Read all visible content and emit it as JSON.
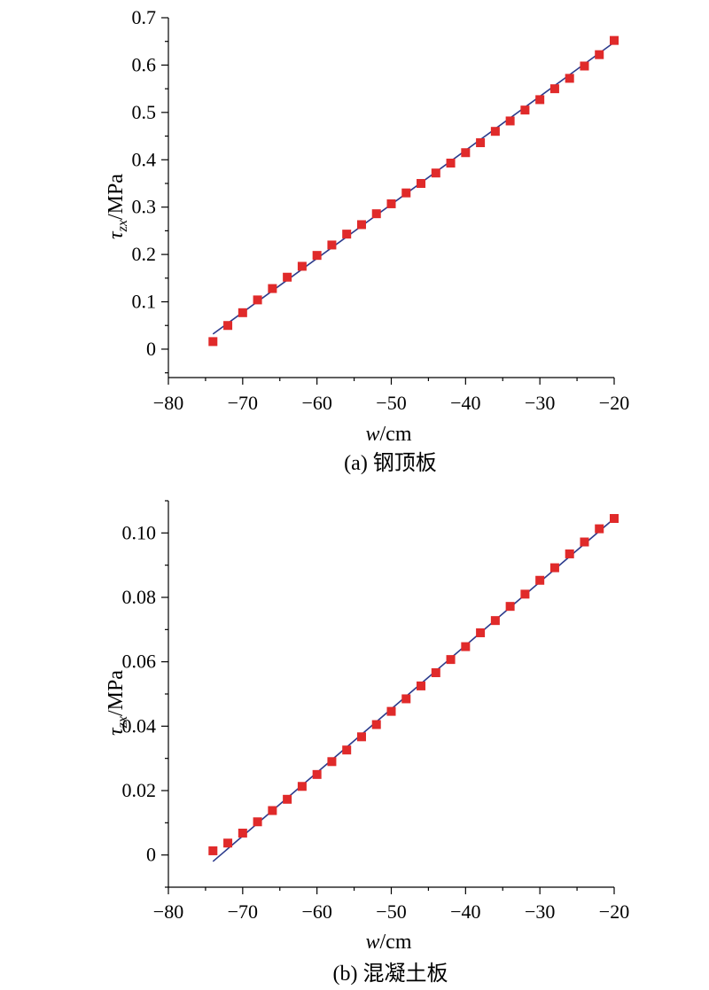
{
  "colors": {
    "points": "#e02a2a",
    "fit_line": "#2b3a8c",
    "axes": "#000000"
  },
  "chart_data": [
    {
      "type": "scatter",
      "caption": "(a) 钢顶板",
      "xlabel": {
        "var": "w",
        "unit": "/cm"
      },
      "ylabel": {
        "var": "τ",
        "sub": "zx",
        "unit": "/MPa"
      },
      "xlim": [
        -80,
        -20
      ],
      "ylim": [
        -0.06,
        0.7
      ],
      "xticks": [
        -80,
        -70,
        -60,
        -50,
        -40,
        -30,
        -20
      ],
      "xtick_labels": [
        "−80",
        "−70",
        "−60",
        "−50",
        "−40",
        "−30",
        "−20"
      ],
      "yticks": [
        0,
        0.1,
        0.2,
        0.3,
        0.4,
        0.5,
        0.6,
        0.7
      ],
      "ytick_labels": [
        "0",
        "0.1",
        "0.2",
        "0.3",
        "0.4",
        "0.5",
        "0.6",
        "0.7"
      ],
      "series": [
        {
          "kind": "points",
          "x": [
            -74,
            -72,
            -70,
            -68,
            -66,
            -64,
            -62,
            -60,
            -58,
            -56,
            -54,
            -52,
            -50,
            -48,
            -46,
            -44,
            -42,
            -40,
            -38,
            -36,
            -34,
            -32,
            -30,
            -28,
            -26,
            -24,
            -22,
            -20
          ],
          "y": [
            0.016,
            0.05,
            0.077,
            0.104,
            0.128,
            0.152,
            0.175,
            0.198,
            0.22,
            0.243,
            0.263,
            0.286,
            0.307,
            0.33,
            0.35,
            0.372,
            0.393,
            0.415,
            0.436,
            0.46,
            0.482,
            0.505,
            0.527,
            0.55,
            0.572,
            0.598,
            0.622,
            0.652
          ]
        },
        {
          "kind": "fit_line",
          "x": [
            -74,
            -20
          ],
          "y": [
            0.032,
            0.648
          ]
        }
      ]
    },
    {
      "type": "scatter",
      "caption": "(b) 混凝土板",
      "xlabel": {
        "var": "w",
        "unit": "/cm"
      },
      "ylabel": {
        "var": "τ",
        "sub": "zx",
        "unit": "/MPa"
      },
      "xlim": [
        -80,
        -20
      ],
      "ylim": [
        -0.01,
        0.11
      ],
      "xticks": [
        -80,
        -70,
        -60,
        -50,
        -40,
        -30,
        -20
      ],
      "xtick_labels": [
        "−80",
        "−70",
        "−60",
        "−50",
        "−40",
        "−30",
        "−20"
      ],
      "yticks": [
        0,
        0.02,
        0.04,
        0.06,
        0.08,
        0.1
      ],
      "ytick_labels": [
        "0",
        "0.02",
        "0.04",
        "0.06",
        "0.08",
        "0.10"
      ],
      "series": [
        {
          "kind": "points",
          "x": [
            -74,
            -72,
            -70,
            -68,
            -66,
            -64,
            -62,
            -60,
            -58,
            -56,
            -54,
            -52,
            -50,
            -48,
            -46,
            -44,
            -42,
            -40,
            -38,
            -36,
            -34,
            -32,
            -30,
            -28,
            -26,
            -24,
            -22,
            -20
          ],
          "y": [
            0.0013,
            0.0037,
            0.0068,
            0.0103,
            0.0138,
            0.0173,
            0.0213,
            0.025,
            0.029,
            0.0326,
            0.0367,
            0.0405,
            0.0446,
            0.0485,
            0.0525,
            0.0566,
            0.0607,
            0.0647,
            0.069,
            0.0728,
            0.0772,
            0.081,
            0.0853,
            0.0892,
            0.0935,
            0.0972,
            0.1013,
            0.1045
          ]
        },
        {
          "kind": "fit_line",
          "x": [
            -74,
            -20
          ],
          "y": [
            -0.002,
            0.1045
          ]
        }
      ]
    }
  ]
}
